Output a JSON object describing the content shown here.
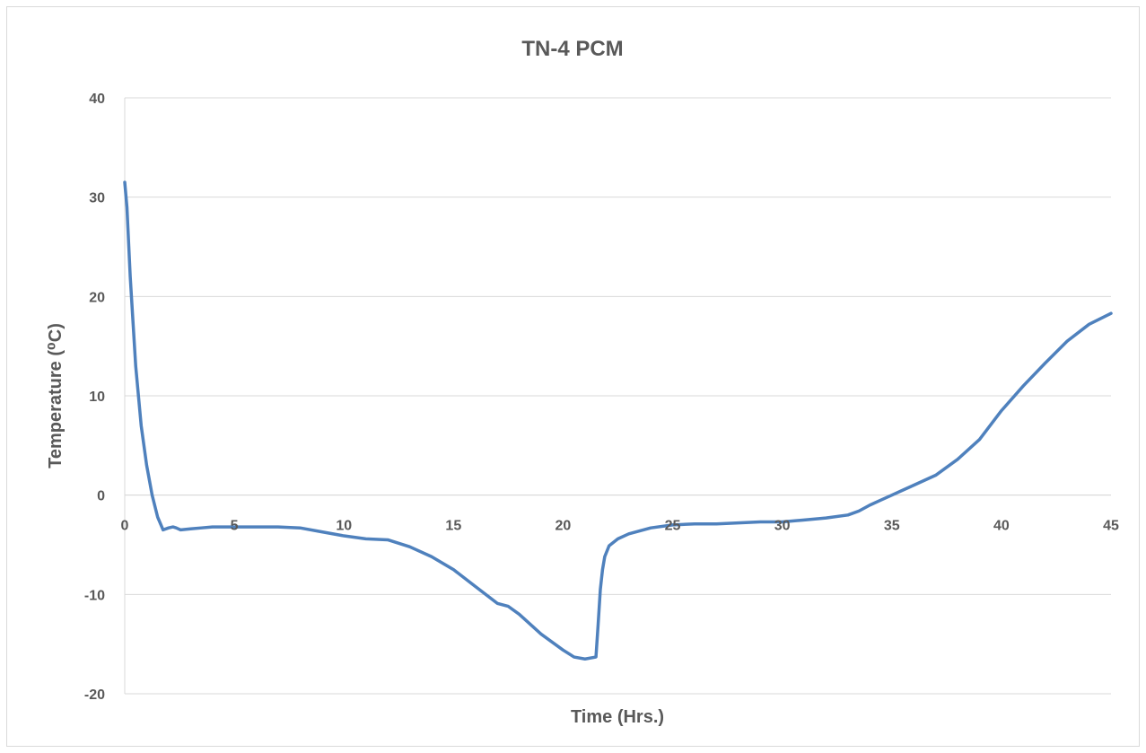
{
  "chart_data": {
    "type": "line",
    "title": "TN-4 PCM",
    "xlabel": "Time (Hrs.)",
    "ylabel": "Temperature (⁰C)",
    "xlim": [
      0,
      45
    ],
    "ylim": [
      -20,
      40
    ],
    "x_ticks": [
      0,
      5,
      10,
      15,
      20,
      25,
      30,
      35,
      40,
      45
    ],
    "x_tick_labels": [
      "0",
      "5",
      "10",
      "15",
      "20",
      "25",
      "30",
      "35",
      "40",
      "45"
    ],
    "y_ticks": [
      40,
      30,
      20,
      10,
      0,
      -10,
      -20
    ],
    "y_tick_labels": [
      "40",
      "30",
      "20",
      "10",
      "0",
      "-10",
      "-20"
    ],
    "grid": "horizontal",
    "line_color": "#4f81bd",
    "gridline_color": "#d9d9d9",
    "series": [
      {
        "x": [
          0,
          0.1,
          0.25,
          0.5,
          0.75,
          1.0,
          1.25,
          1.5,
          1.75,
          2.0,
          2.2,
          2.35,
          2.45,
          2.55,
          3,
          3.5,
          4,
          5,
          6,
          7,
          8,
          9,
          10,
          11,
          12,
          13,
          14,
          15,
          16,
          17,
          17.5,
          18,
          19,
          20,
          20.5,
          21,
          21.5,
          21.6,
          21.7,
          21.8,
          21.9,
          22.1,
          22.5,
          23,
          24,
          25,
          26,
          27,
          28,
          29,
          30,
          31,
          32,
          33,
          33.5,
          34,
          34.5,
          35,
          35.5,
          36,
          37,
          38,
          39,
          40,
          41,
          42,
          43,
          44,
          45
        ],
        "y": [
          31.5,
          29,
          22,
          13,
          7,
          3,
          0,
          -2.2,
          -3.5,
          -3.3,
          -3.2,
          -3.3,
          -3.4,
          -3.5,
          -3.4,
          -3.3,
          -3.2,
          -3.2,
          -3.2,
          -3.2,
          -3.3,
          -3.7,
          -4.1,
          -4.4,
          -4.5,
          -5.2,
          -6.2,
          -7.5,
          -9.2,
          -10.9,
          -11.2,
          -12.0,
          -14.0,
          -15.6,
          -16.3,
          -16.5,
          -16.3,
          -13.0,
          -9.5,
          -7.5,
          -6.2,
          -5.1,
          -4.4,
          -3.9,
          -3.3,
          -3.0,
          -2.9,
          -2.9,
          -2.8,
          -2.7,
          -2.7,
          -2.5,
          -2.3,
          -2.0,
          -1.6,
          -1.0,
          -0.5,
          0.0,
          0.5,
          1.0,
          2.0,
          3.6,
          5.6,
          8.5,
          11.0,
          13.3,
          15.5,
          17.2,
          18.3
        ]
      }
    ]
  }
}
